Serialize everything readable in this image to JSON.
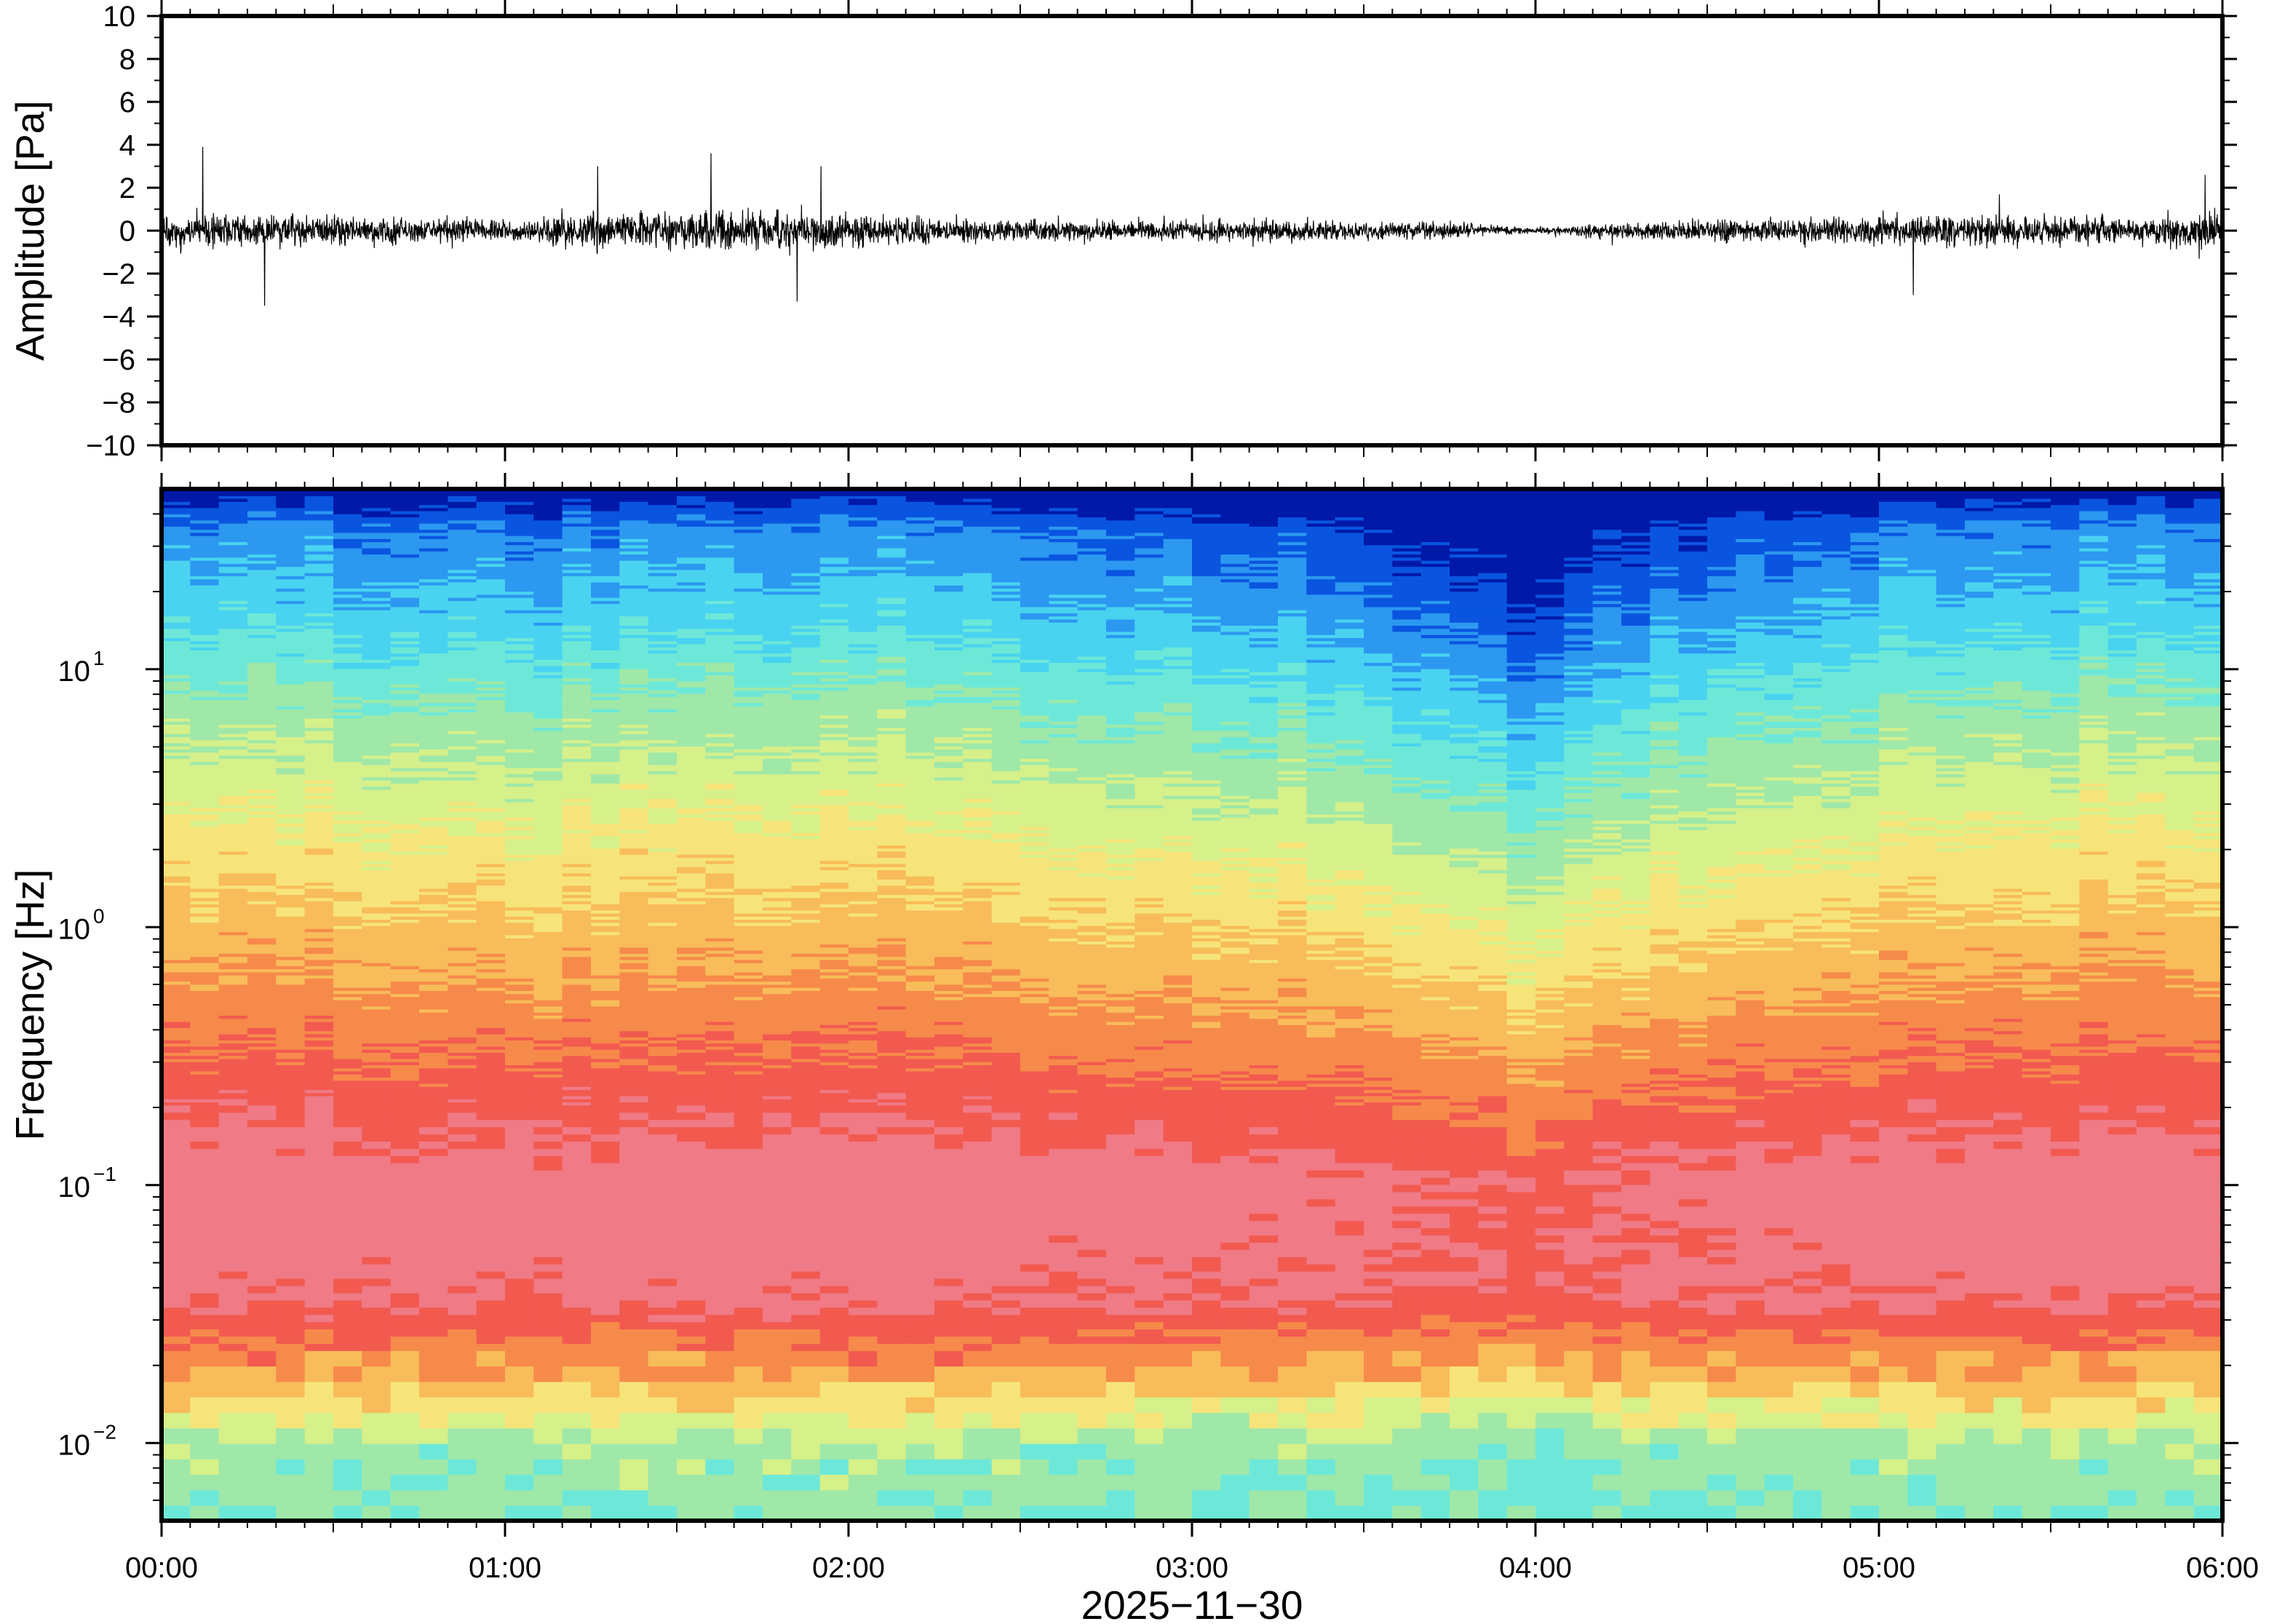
{
  "chart_data": [
    {
      "type": "line",
      "panel": "waveform",
      "ylabel": "Amplitude [Pa]",
      "ylim": [
        -10,
        10
      ],
      "yticks": [
        -10,
        -8,
        -6,
        -4,
        -2,
        0,
        2,
        4,
        6,
        8,
        10
      ],
      "ytick_labels": [
        "−10",
        "−8",
        "−6",
        "−4",
        "−2",
        "0",
        "2",
        "4",
        "6",
        "8",
        "10"
      ],
      "x_range_hours": [
        0,
        6
      ],
      "series": [
        {
          "values_description_hours": [
            0,
            0.25,
            0.5,
            0.75,
            1.0,
            1.25,
            1.5,
            1.75,
            2.0,
            2.25,
            2.5,
            2.75,
            3.0,
            3.25,
            3.5,
            3.75,
            4.0,
            4.25,
            4.5,
            4.75,
            5.0,
            5.25,
            5.5,
            5.75,
            6.0
          ],
          "envelope_pa": [
            1.6,
            1.3,
            1.1,
            1.0,
            0.8,
            1.3,
            1.4,
            1.6,
            1.4,
            1.1,
            0.8,
            0.8,
            0.8,
            0.9,
            0.7,
            0.6,
            0.2,
            0.7,
            0.8,
            0.9,
            1.1,
            1.2,
            1.1,
            1.0,
            1.6
          ],
          "peaks": [
            {
              "x": 0.12,
              "y": 3.9
            },
            {
              "x": 0.3,
              "y": -3.5
            },
            {
              "x": 1.27,
              "y": 3.0
            },
            {
              "x": 1.6,
              "y": 3.6
            },
            {
              "x": 1.85,
              "y": -3.3
            },
            {
              "x": 1.92,
              "y": 3.0
            },
            {
              "x": 5.1,
              "y": -3.0
            },
            {
              "x": 5.95,
              "y": 2.6
            }
          ]
        }
      ]
    },
    {
      "type": "heatmap",
      "panel": "spectrogram",
      "ylabel": "Frequency [Hz]",
      "yscale": "log",
      "ylim": [
        0.005,
        50
      ],
      "yticks": [
        0.01,
        0.1,
        1,
        10
      ],
      "ytick_labels": [
        {
          "base": "10",
          "exp": "−2"
        },
        {
          "base": "10",
          "exp": "−1"
        },
        {
          "base": "10",
          "exp": "0"
        },
        {
          "base": "10",
          "exp": "1"
        }
      ],
      "colormap": "rainbow",
      "x_range_hours": [
        0,
        6
      ],
      "power_by_time": {
        "hours": [
          0,
          0.5,
          1.0,
          1.5,
          2.0,
          2.5,
          3.0,
          3.5,
          3.8,
          4.0,
          4.2,
          4.5,
          5.0,
          5.5,
          6.0
        ],
        "level": [
          0.9,
          0.85,
          0.8,
          0.88,
          0.9,
          0.8,
          0.75,
          0.65,
          0.5,
          0.35,
          0.55,
          0.7,
          0.8,
          0.85,
          0.9
        ]
      },
      "colors": [
        "#0019a8",
        "#0a55e0",
        "#2c98f0",
        "#49d3f0",
        "#6de8d8",
        "#9fe8a8",
        "#d6f08a",
        "#f6e47a",
        "#f8bc5a",
        "#f68a4a",
        "#f25a50",
        "#f07a86"
      ]
    }
  ],
  "xaxis": {
    "tick_labels": [
      "00:00",
      "01:00",
      "02:00",
      "03:00",
      "04:00",
      "05:00",
      "06:00"
    ],
    "date_label": "2025−11−30"
  }
}
